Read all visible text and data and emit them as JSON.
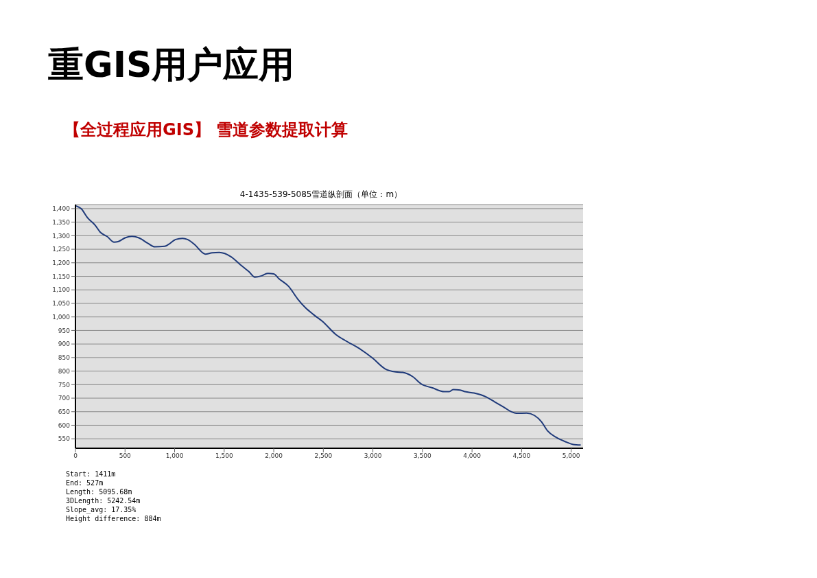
{
  "chart_data": {
    "type": "line",
    "title": "4-1435-539-5085雪道纵剖面（单位：m）",
    "subtitle": "重GIS用户应用",
    "annotations": [
      "【全过程应用GIS】 雪道参数提取计算",
      "Start: 1411m",
      "End: 527m",
      "Length: 5095.68m",
      "3DLength: 5242.54m",
      "Slope_avg: 17.35%",
      "Height difference: 884m"
    ],
    "x": [
      0,
      60,
      120,
      200,
      250,
      320,
      390,
      430,
      500,
      570,
      640,
      730,
      800,
      900,
      940,
      1010,
      1080,
      1130,
      1200,
      1310,
      1380,
      1450,
      1570,
      1660,
      1750,
      1810,
      1870,
      1940,
      2000,
      2050,
      2150,
      2240,
      2320,
      2400,
      2490,
      2630,
      2720,
      2860,
      3000,
      3120,
      3230,
      3300,
      3400,
      3490,
      3600,
      3720,
      3770,
      3810,
      3880,
      3930,
      4020,
      4140,
      4230,
      4320,
      4390,
      4460,
      4550,
      4630,
      4700,
      4760,
      4850,
      4950,
      5020,
      5096
    ],
    "series": [
      {
        "color": "#1f3a7a",
        "values": [
          1411,
          1399,
          1367,
          1338,
          1313,
          1297,
          1276,
          1278,
          1292,
          1298,
          1292,
          1272,
          1259,
          1261,
          1268,
          1286,
          1290,
          1286,
          1268,
          1232,
          1237,
          1238,
          1222,
          1194,
          1167,
          1147,
          1151,
          1161,
          1159,
          1142,
          1113,
          1067,
          1034,
          1009,
          984,
          934,
          913,
          884,
          847,
          809,
          797,
          795,
          780,
          752,
          738,
          724,
          724,
          732,
          730,
          724,
          719,
          705,
          686,
          667,
          651,
          644,
          645,
          636,
          613,
          580,
          555,
          538,
          529,
          527
        ]
      }
    ],
    "xlim": [
      0,
      5120
    ],
    "ylim": [
      515,
      1415
    ],
    "xticks": [
      0,
      500,
      {
        "value": 1000,
        "label": "1,000"
      },
      {
        "value": 1500,
        "label": "1,500"
      },
      {
        "value": 2000,
        "label": "2,000"
      },
      {
        "value": 2500,
        "label": "2,500"
      },
      {
        "value": 3000,
        "label": "3,000"
      },
      {
        "value": 3500,
        "label": "3,500"
      },
      {
        "value": 4000,
        "label": "4,000"
      },
      {
        "value": 4500,
        "label": "4,500"
      },
      {
        "value": 5000,
        "label": "5,000"
      }
    ],
    "yticks": [
      550,
      600,
      650,
      700,
      750,
      800,
      850,
      900,
      950,
      {
        "value": 1000,
        "label": "1,000"
      },
      {
        "value": 1050,
        "label": "1,050"
      },
      {
        "value": 1100,
        "label": "1,100"
      },
      {
        "value": 1150,
        "label": "1,150"
      },
      {
        "value": 1200,
        "label": "1,200"
      },
      {
        "value": 1250,
        "label": "1,250"
      },
      {
        "value": 1300,
        "label": "1,300"
      },
      {
        "value": 1350,
        "label": "1,350"
      },
      {
        "value": 1400,
        "label": "1,400"
      }
    ],
    "grid": "y",
    "legend": false,
    "marker": "none",
    "line_style": "solid"
  }
}
